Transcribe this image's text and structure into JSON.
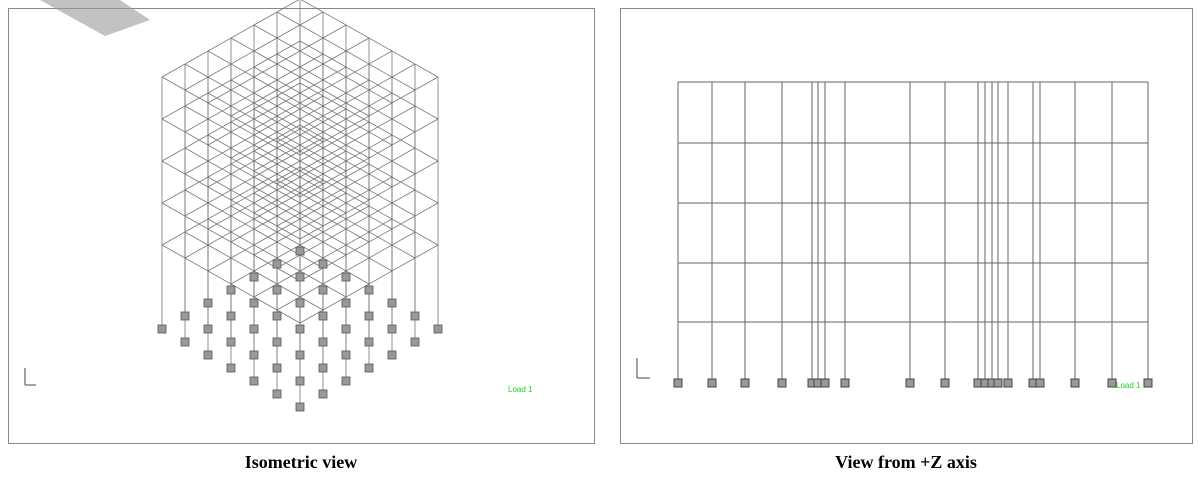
{
  "panels": [
    {
      "caption": "Isometric view",
      "load_label": "Load 1"
    },
    {
      "caption": "View from +Z axis",
      "load_label": "Load 1"
    }
  ]
}
